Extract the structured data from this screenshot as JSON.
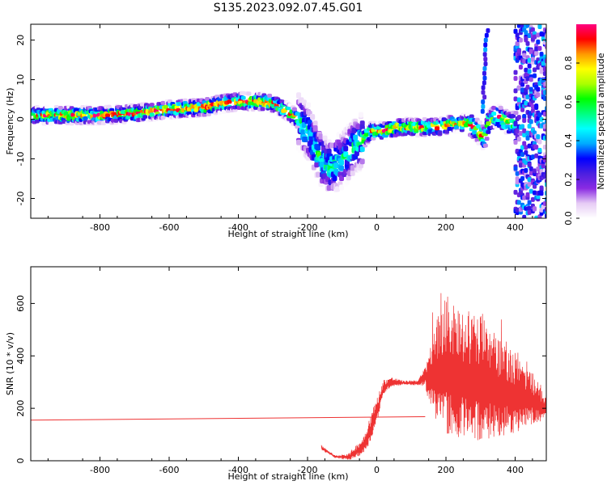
{
  "title": "S135.2023.092.07.45.G01",
  "chart_data": [
    {
      "type": "heatmap",
      "xlabel": "Height of straight line (km)",
      "ylabel": "Frequency (Hz)",
      "xlim": [
        -1000,
        490
      ],
      "ylim": [
        -25,
        24
      ],
      "xticks": [
        -800,
        -600,
        -400,
        -200,
        0,
        200,
        400
      ],
      "yticks": [
        -20,
        -10,
        0,
        10,
        20
      ],
      "colorbar": {
        "label": "Normalized spectral amplitude",
        "range": [
          0,
          1
        ],
        "ticks": [
          "0.0",
          "0.2",
          "0.4",
          "0.6",
          "0.8"
        ],
        "colors": [
          "#ffffff",
          "#e6ccf5",
          "#8a2be2",
          "#4b1fe0",
          "#0000ff",
          "#00aaff",
          "#00ffff",
          "#00ff80",
          "#00ff00",
          "#aaff00",
          "#ffff00",
          "#ff9900",
          "#ff0000",
          "#ff0080"
        ]
      },
      "ridge": {
        "x": [
          -1000,
          -900,
          -800,
          -700,
          -600,
          -500,
          -450,
          -400,
          -350,
          -300,
          -260,
          -230,
          -200,
          -180,
          -160,
          -140,
          -120,
          -100,
          -80,
          -60,
          -40,
          -20,
          0,
          20,
          40,
          60,
          80,
          100,
          140,
          180,
          220,
          260,
          280,
          300,
          310,
          320,
          340,
          360,
          380,
          400
        ],
        "freq": [
          1,
          1,
          1,
          1.5,
          2.5,
          3,
          4,
          4.5,
          4.5,
          4,
          2,
          0,
          -3,
          -7,
          -10,
          -12,
          -11,
          -10,
          -8,
          -6,
          -5,
          -3,
          -3,
          -3,
          -2.5,
          -2,
          -2,
          -2,
          -2,
          -2,
          -1,
          -1,
          -2,
          -4,
          -5,
          -1,
          1,
          0,
          -1,
          -1
        ]
      }
    },
    {
      "type": "line",
      "xlabel": "Height of straight line (km)",
      "ylabel": "SNR (10 * v/v)",
      "xlim": [
        -1000,
        490
      ],
      "ylim": [
        0,
        740
      ],
      "xticks": [
        -800,
        -600,
        -400,
        -200,
        0,
        200,
        400
      ],
      "yticks": [
        0,
        200,
        400,
        600
      ],
      "color": "#ee3333",
      "baseline": {
        "x": [
          -1000,
          140
        ],
        "y": [
          155,
          168
        ]
      },
      "envelope": {
        "x": [
          -160,
          -120,
          -80,
          -40,
          -20,
          0,
          20,
          40,
          80,
          120,
          140,
          160,
          200,
          250,
          300,
          350,
          400,
          450,
          490
        ],
        "low": [
          40,
          10,
          0,
          20,
          60,
          140,
          250,
          280,
          290,
          285,
          280,
          150,
          70,
          60,
          50,
          70,
          90,
          130,
          150
        ],
        "high": [
          60,
          20,
          30,
          90,
          170,
          240,
          310,
          320,
          305,
          310,
          360,
          500,
          640,
          580,
          560,
          480,
          420,
          340,
          240
        ]
      }
    }
  ]
}
